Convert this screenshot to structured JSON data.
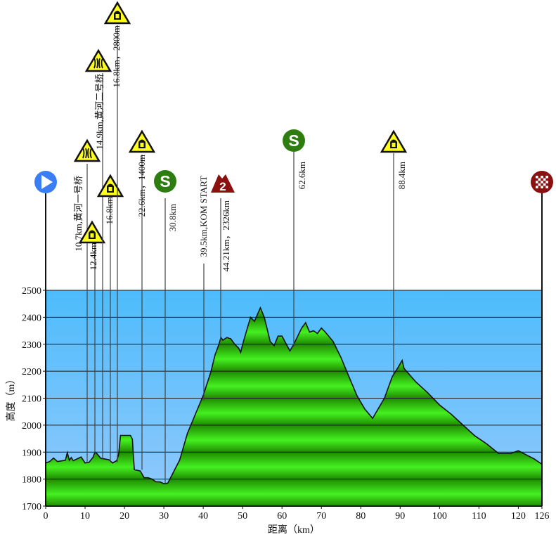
{
  "chart_data": {
    "type": "area",
    "title": "",
    "xlabel": "距离（km）",
    "ylabel": "高度（m）",
    "xlim": [
      0,
      126
    ],
    "ylim": [
      1700,
      2500
    ],
    "x_ticks": [
      0,
      10,
      20,
      30,
      40,
      50,
      60,
      70,
      80,
      90,
      100,
      110,
      120,
      126
    ],
    "y_ticks": [
      1700,
      1800,
      1900,
      2000,
      2100,
      2200,
      2300,
      2400,
      2500
    ],
    "grid": true,
    "colors": {
      "sky_top": "#4dbcfb",
      "sky_bottom": "#93c9fd",
      "fill_dark": "#1f8a00",
      "fill_light": "#44f020",
      "outline": "#111111"
    },
    "profile": {
      "x": [
        0,
        1,
        2,
        3,
        5,
        5.5,
        6,
        6.5,
        7,
        9,
        10,
        11,
        12,
        12.5,
        13,
        14,
        16,
        17,
        18,
        18.5,
        19,
        21.5,
        22,
        22.5,
        24,
        25,
        26,
        27,
        28,
        29,
        30,
        31,
        34,
        36,
        38,
        40,
        42,
        43,
        44,
        44.5,
        45,
        46,
        47,
        48,
        49,
        49.5,
        50,
        52,
        53,
        54.5,
        55.5,
        57,
        58,
        59,
        60,
        62,
        63,
        65,
        66,
        67,
        68,
        69,
        70,
        71,
        73,
        75,
        77,
        79,
        81,
        83,
        84,
        86,
        88,
        89.5,
        90.5,
        91,
        94,
        97,
        100,
        103,
        106,
        109,
        112,
        115,
        118,
        120,
        122,
        124,
        126
      ],
      "y": [
        1860,
        1865,
        1878,
        1865,
        1870,
        1898,
        1870,
        1880,
        1868,
        1882,
        1860,
        1862,
        1880,
        1900,
        1895,
        1877,
        1872,
        1860,
        1868,
        1890,
        1962,
        1962,
        1948,
        1835,
        1830,
        1805,
        1805,
        1800,
        1790,
        1790,
        1783,
        1785,
        1870,
        1970,
        2040,
        2110,
        2200,
        2260,
        2300,
        2325,
        2315,
        2325,
        2320,
        2300,
        2285,
        2270,
        2300,
        2400,
        2385,
        2435,
        2400,
        2310,
        2295,
        2330,
        2330,
        2275,
        2300,
        2360,
        2380,
        2345,
        2350,
        2340,
        2360,
        2345,
        2310,
        2250,
        2180,
        2110,
        2060,
        2025,
        2050,
        2100,
        2180,
        2215,
        2240,
        2210,
        2160,
        2120,
        2075,
        2040,
        2000,
        1960,
        1930,
        1895,
        1895,
        1905,
        1890,
        1875,
        1855
      ]
    },
    "markers": [
      {
        "km": 0,
        "icon": "start-icon",
        "label": ""
      },
      {
        "km": 10.7,
        "icon": "bridge-icon",
        "label": "10.7km,黄河一号桥"
      },
      {
        "km": 12.4,
        "icon": "tunnel-icon",
        "label": "12.4km"
      },
      {
        "km": 14.9,
        "icon": "bridge-icon",
        "label": "14.9km,黄河二号桥"
      },
      {
        "km": 16.8,
        "icon": "tunnel-icon",
        "label": "16.8km"
      },
      {
        "km": 16.8,
        "icon": "tunnel-icon",
        "label": "16.8km，2800m"
      },
      {
        "km": 22.6,
        "icon": "tunnel-icon",
        "label": "22.6km，1400m"
      },
      {
        "km": 30.8,
        "icon": "sprint-icon",
        "label": "30.8km"
      },
      {
        "km": 39.5,
        "icon": "",
        "label": "39.5km,KOM START"
      },
      {
        "km": 44.21,
        "icon": "kom-category-icon",
        "label": "44.21km，2326km",
        "category": "2"
      },
      {
        "km": 62.6,
        "icon": "sprint-icon",
        "label": "62.6km"
      },
      {
        "km": 88.4,
        "icon": "tunnel-icon",
        "label": "88.4km"
      },
      {
        "km": 126,
        "icon": "finish-icon",
        "label": ""
      }
    ]
  }
}
